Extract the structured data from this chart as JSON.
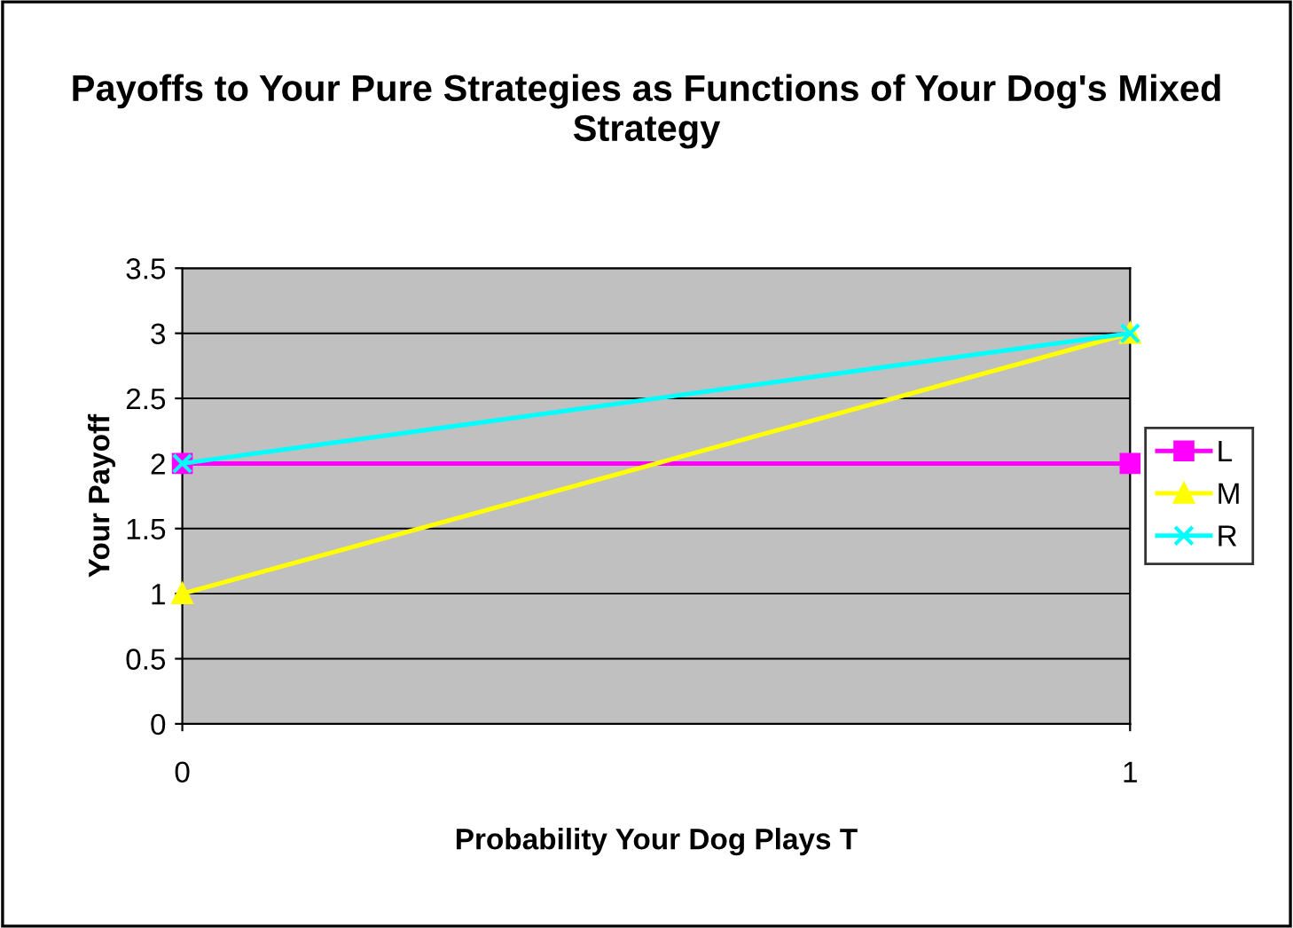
{
  "chart_data": {
    "type": "line",
    "title": "Payoffs to Your Pure Strategies as Functions of Your Dog's Mixed Strategy",
    "xlabel": "Probability Your Dog Plays T",
    "ylabel": "Your Payoff",
    "x": [
      0,
      1
    ],
    "xlim": [
      0,
      1
    ],
    "xticks": [
      0,
      1
    ],
    "series": [
      {
        "name": "L",
        "color": "#ff00ff",
        "marker": "square",
        "values": [
          2,
          2
        ]
      },
      {
        "name": "M",
        "color": "#ffff00",
        "marker": "triangle",
        "values": [
          1,
          3
        ]
      },
      {
        "name": "R",
        "color": "#00ffff",
        "marker": "cross",
        "values": [
          2,
          3
        ]
      }
    ],
    "ylim": [
      0,
      3.5
    ],
    "yticks": [
      0,
      0.5,
      1,
      1.5,
      2,
      2.5,
      3,
      3.5
    ],
    "grid": "y",
    "legend": "right",
    "line_style": "solid"
  }
}
